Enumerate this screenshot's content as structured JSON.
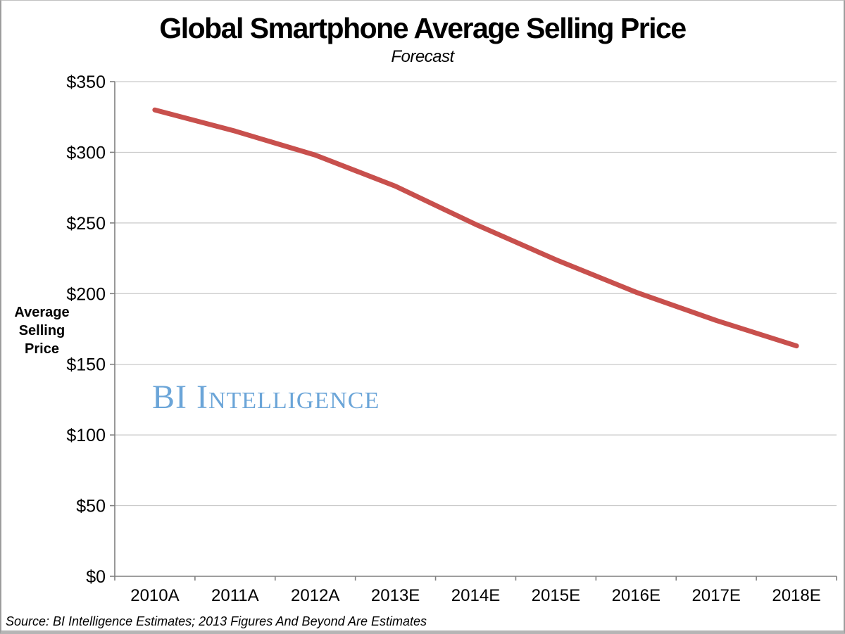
{
  "title": "Global Smartphone Average Selling Price",
  "subtitle": "Forecast",
  "source_note": "Source: BI Intelligence Estimates; 2013 Figures And Beyond Are Estimates",
  "watermark": "BI Intelligence",
  "y_axis_title_lines": [
    "Average",
    "Selling",
    "Price"
  ],
  "colors": {
    "line": "#C8504D",
    "gridline": "#C9C9C9",
    "axis": "#7F7F7F",
    "text": "#000000",
    "watermark": "#6BA5D8"
  },
  "chart_data": {
    "type": "line",
    "categories": [
      "2010A",
      "2011A",
      "2012A",
      "2013E",
      "2014E",
      "2015E",
      "2016E",
      "2017E",
      "2018E"
    ],
    "values": [
      330,
      315,
      298,
      276,
      249,
      224,
      201,
      181,
      163
    ],
    "series_name": "Global Smartphone Average Selling Price",
    "title": "Global Smartphone Average Selling Price",
    "subtitle": "Forecast",
    "xlabel": "",
    "ylabel": "Average Selling Price",
    "ylim": [
      0,
      350
    ],
    "ytick_step": 50,
    "ytick_prefix": "$",
    "grid": true,
    "legend": false
  }
}
